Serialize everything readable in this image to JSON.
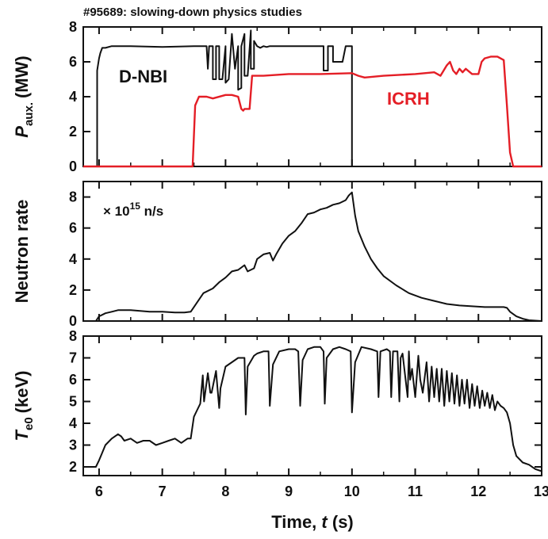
{
  "title": "#95689: slowing-down physics studies",
  "colors": {
    "dnbi": "#111111",
    "icrh": "#e41e26",
    "neutron": "#111111",
    "te0": "#111111",
    "frame": "#111111"
  },
  "chart_data": [
    {
      "type": "line",
      "ylabel_main": "P",
      "ylabel_sub": "aux.",
      "ylabel_unit": "(MW)",
      "xlim": [
        5.75,
        13
      ],
      "ylim": [
        0,
        8
      ],
      "yticks": [
        0,
        2,
        4,
        6,
        8
      ],
      "series": [
        {
          "name": "D-NBI",
          "color": "#111111",
          "x": [
            5.75,
            5.97,
            5.97,
            6.0,
            6.02,
            6.05,
            6.1,
            6.2,
            6.5,
            7.0,
            7.5,
            7.7,
            7.72,
            7.74,
            7.8,
            7.8,
            7.85,
            7.85,
            7.9,
            7.9,
            7.95,
            8.0,
            8.0,
            8.05,
            8.1,
            8.15,
            8.2,
            8.2,
            8.25,
            8.25,
            8.3,
            8.3,
            8.35,
            8.4,
            8.4,
            8.45,
            8.45,
            8.5,
            8.5,
            8.55,
            8.6,
            8.65,
            8.7,
            9.0,
            9.3,
            9.55,
            9.55,
            9.62,
            9.62,
            9.7,
            9.7,
            9.85,
            9.9,
            9.99,
            10.0,
            10.0,
            13.0
          ],
          "y": [
            0,
            0,
            5.5,
            6.2,
            6.5,
            6.8,
            6.8,
            6.9,
            6.9,
            6.85,
            6.9,
            6.9,
            5.6,
            6.9,
            6.9,
            5.0,
            5.0,
            6.9,
            6.9,
            5.0,
            5.0,
            6.9,
            4.8,
            5.0,
            7.6,
            5.6,
            6.9,
            4.4,
            4.5,
            6.9,
            7.6,
            5.2,
            5.2,
            7.8,
            5.6,
            5.6,
            7.2,
            6.9,
            6.9,
            6.8,
            6.9,
            6.85,
            6.9,
            6.9,
            6.9,
            6.9,
            5.5,
            5.5,
            6.9,
            6.9,
            6.0,
            6.0,
            6.9,
            6.9,
            6.9,
            0,
            0
          ]
        },
        {
          "name": "ICRH",
          "color": "#e41e26",
          "x": [
            5.75,
            7.48,
            7.52,
            7.58,
            7.7,
            7.8,
            8.0,
            8.1,
            8.2,
            8.25,
            8.28,
            8.3,
            8.35,
            8.38,
            8.42,
            8.5,
            8.6,
            9.0,
            9.5,
            10.0,
            10.1,
            10.2,
            10.5,
            11.0,
            11.3,
            11.4,
            11.5,
            11.55,
            11.6,
            11.65,
            11.7,
            11.75,
            11.8,
            11.9,
            12.0,
            12.05,
            12.1,
            12.2,
            12.3,
            12.4,
            12.45,
            12.5,
            12.55,
            13.0
          ],
          "y": [
            0,
            0,
            3.5,
            4.0,
            4.0,
            3.9,
            4.1,
            4.1,
            4.0,
            3.3,
            3.2,
            3.3,
            3.3,
            3.3,
            5.2,
            5.2,
            5.2,
            5.3,
            5.3,
            5.35,
            5.2,
            5.1,
            5.2,
            5.3,
            5.4,
            5.2,
            5.8,
            6.0,
            5.5,
            5.3,
            5.6,
            5.4,
            5.6,
            5.3,
            5.3,
            6.0,
            6.2,
            6.3,
            6.3,
            6.1,
            3.5,
            0.8,
            0,
            0
          ]
        }
      ],
      "annotations": [
        "D-NBI",
        "ICRH"
      ]
    },
    {
      "type": "line",
      "ylabel": "Neutron rate",
      "unit_note_prefix": "× 10",
      "unit_note_exp": "15",
      "unit_note_suffix": " n/s",
      "xlim": [
        5.75,
        13
      ],
      "ylim": [
        0,
        9
      ],
      "yticks": [
        0,
        2,
        4,
        6,
        8
      ],
      "series": [
        {
          "x": [
            5.75,
            5.95,
            6.0,
            6.1,
            6.2,
            6.3,
            6.5,
            6.8,
            7.0,
            7.2,
            7.35,
            7.45,
            7.5,
            7.6,
            7.65,
            7.8,
            7.9,
            8.0,
            8.1,
            8.2,
            8.3,
            8.35,
            8.45,
            8.5,
            8.6,
            8.7,
            8.75,
            8.8,
            8.9,
            9.0,
            9.1,
            9.2,
            9.25,
            9.3,
            9.4,
            9.5,
            9.6,
            9.7,
            9.8,
            9.9,
            9.95,
            10.0,
            10.05,
            10.1,
            10.2,
            10.3,
            10.4,
            10.5,
            10.7,
            10.9,
            11.1,
            11.3,
            11.5,
            11.7,
            11.9,
            12.1,
            12.3,
            12.4,
            12.45,
            12.5,
            12.6,
            12.7,
            12.8,
            13.0
          ],
          "y": [
            0,
            0,
            0.3,
            0.5,
            0.6,
            0.7,
            0.7,
            0.6,
            0.6,
            0.55,
            0.55,
            0.6,
            0.9,
            1.5,
            1.8,
            2.1,
            2.5,
            2.8,
            3.2,
            3.3,
            3.6,
            3.2,
            3.4,
            4.0,
            4.3,
            4.4,
            3.9,
            4.3,
            5.0,
            5.5,
            5.8,
            6.3,
            6.6,
            6.9,
            7.0,
            7.2,
            7.3,
            7.5,
            7.6,
            7.8,
            8.1,
            8.3,
            6.8,
            5.8,
            4.8,
            4.0,
            3.4,
            2.9,
            2.3,
            1.8,
            1.5,
            1.3,
            1.1,
            1.0,
            0.95,
            0.9,
            0.9,
            0.9,
            0.85,
            0.6,
            0.3,
            0.15,
            0.05,
            0
          ]
        }
      ]
    },
    {
      "type": "line",
      "ylabel_main": "T",
      "ylabel_sub": "e0",
      "ylabel_unit": "(keV)",
      "xlim": [
        5.75,
        13
      ],
      "ylim": [
        1.6,
        8
      ],
      "yticks": [
        2,
        3,
        4,
        5,
        6,
        7,
        8
      ],
      "series": [
        {
          "x": [
            5.75,
            5.95,
            6.0,
            6.1,
            6.2,
            6.3,
            6.35,
            6.4,
            6.5,
            6.6,
            6.7,
            6.8,
            6.9,
            7.0,
            7.1,
            7.2,
            7.3,
            7.4,
            7.45,
            7.5,
            7.55,
            7.6,
            7.64,
            7.66,
            7.72,
            7.76,
            7.78,
            7.85,
            7.9,
            7.92,
            8.0,
            8.1,
            8.2,
            8.3,
            8.32,
            8.35,
            8.45,
            8.5,
            8.6,
            8.68,
            8.7,
            8.75,
            8.85,
            9.0,
            9.1,
            9.15,
            9.18,
            9.22,
            9.3,
            9.4,
            9.5,
            9.55,
            9.57,
            9.6,
            9.7,
            9.8,
            9.9,
            9.98,
            10.0,
            10.05,
            10.15,
            10.3,
            10.4,
            10.42,
            10.45,
            10.55,
            10.6,
            10.62,
            10.65,
            10.72,
            10.75,
            10.77,
            10.8,
            10.88,
            10.9,
            10.92,
            10.95,
            11.0,
            11.05,
            11.08,
            11.12,
            11.18,
            11.22,
            11.26,
            11.3,
            11.34,
            11.38,
            11.42,
            11.46,
            11.5,
            11.54,
            11.58,
            11.62,
            11.66,
            11.7,
            11.74,
            11.78,
            11.82,
            11.86,
            11.9,
            11.94,
            11.98,
            12.02,
            12.06,
            12.1,
            12.14,
            12.18,
            12.22,
            12.26,
            12.3,
            12.35,
            12.4,
            12.45,
            12.5,
            12.55,
            12.6,
            12.7,
            12.8,
            12.9,
            13.0
          ],
          "y": [
            2.0,
            2.0,
            2.3,
            3.0,
            3.3,
            3.5,
            3.4,
            3.2,
            3.3,
            3.1,
            3.2,
            3.2,
            3.0,
            3.1,
            3.2,
            3.3,
            3.1,
            3.3,
            3.3,
            4.3,
            4.6,
            4.9,
            6.2,
            5.0,
            6.3,
            5.4,
            5.4,
            6.4,
            4.7,
            5.6,
            6.6,
            6.8,
            7.0,
            7.0,
            4.4,
            6.6,
            7.1,
            7.2,
            7.3,
            7.3,
            4.8,
            6.7,
            7.3,
            7.4,
            7.4,
            7.3,
            4.8,
            6.9,
            7.4,
            7.5,
            7.5,
            7.3,
            4.9,
            7.0,
            7.4,
            7.5,
            7.4,
            7.3,
            4.5,
            6.8,
            7.5,
            7.4,
            7.3,
            5.2,
            7.3,
            7.4,
            7.3,
            5.2,
            7.3,
            7.3,
            5.0,
            7.0,
            7.2,
            5.2,
            7.3,
            6.0,
            6.5,
            5.2,
            7.1,
            6.0,
            5.4,
            6.8,
            5.0,
            6.6,
            5.2,
            6.5,
            5.0,
            6.5,
            4.8,
            6.4,
            5.0,
            6.3,
            4.9,
            6.2,
            4.8,
            6.0,
            4.9,
            6.0,
            4.7,
            5.8,
            4.8,
            5.7,
            4.7,
            5.5,
            4.8,
            5.4,
            4.7,
            5.3,
            4.6,
            5.0,
            4.8,
            4.7,
            4.5,
            4.0,
            3.0,
            2.5,
            2.2,
            2.1,
            1.9,
            1.8
          ]
        }
      ]
    }
  ],
  "xaxis": {
    "xlim": [
      5.75,
      13
    ],
    "ticks": [
      6,
      7,
      8,
      9,
      10,
      11,
      12,
      13
    ],
    "label_main": "Time, ",
    "label_var": "t",
    "label_unit": " (s)"
  }
}
